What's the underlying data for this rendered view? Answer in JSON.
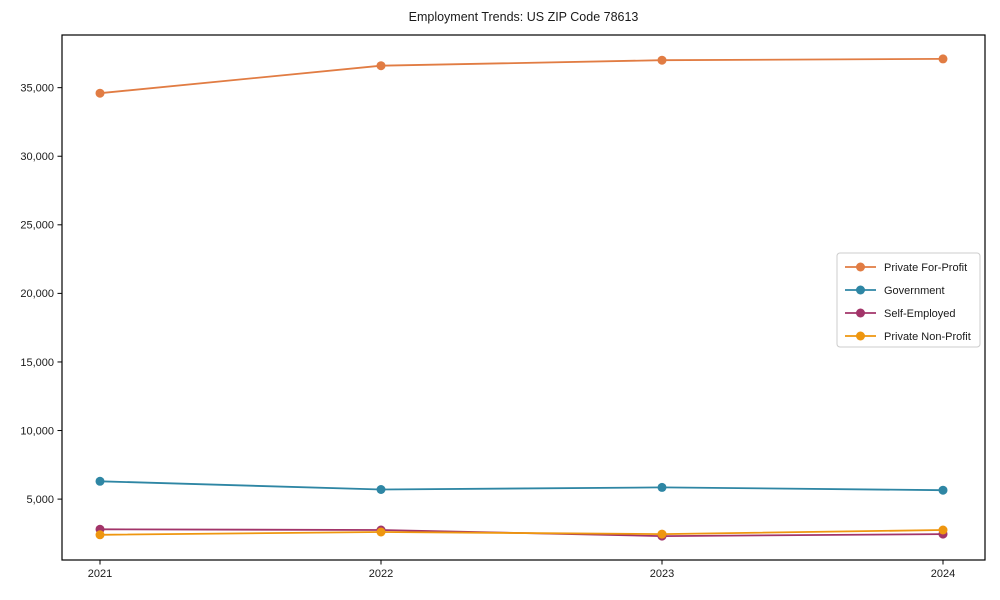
{
  "chart_data": {
    "type": "line",
    "title": "Employment Trends: US ZIP Code 78613",
    "xlabel": "",
    "ylabel": "",
    "x_categories": [
      "2021",
      "2022",
      "2023",
      "2024"
    ],
    "series": [
      {
        "name": "Private For-Profit",
        "color": "#E17C43",
        "values": [
          34600,
          36600,
          37000,
          37100
        ]
      },
      {
        "name": "Government",
        "color": "#2E86A4",
        "values": [
          6300,
          5700,
          5850,
          5650
        ]
      },
      {
        "name": "Self-Employed",
        "color": "#A23469",
        "values": [
          2800,
          2750,
          2300,
          2450
        ]
      },
      {
        "name": "Private Non-Profit",
        "color": "#EE960F",
        "values": [
          2400,
          2600,
          2450,
          2750
        ]
      }
    ],
    "y_ticks": [
      5000,
      10000,
      15000,
      20000,
      25000,
      30000,
      35000
    ],
    "y_tick_labels": [
      "5,000",
      "10,000",
      "15,000",
      "20,000",
      "25,000",
      "30,000",
      "35,000"
    ],
    "ylim": [
      560,
      38840
    ],
    "grid": false,
    "marker": "circle",
    "legend_position": "center-right",
    "frame": "full-box",
    "axis_color": "#000000",
    "text_color": "#1a1a1a",
    "legend_border_color": "#cccccc",
    "background_color": "#ffffff"
  }
}
